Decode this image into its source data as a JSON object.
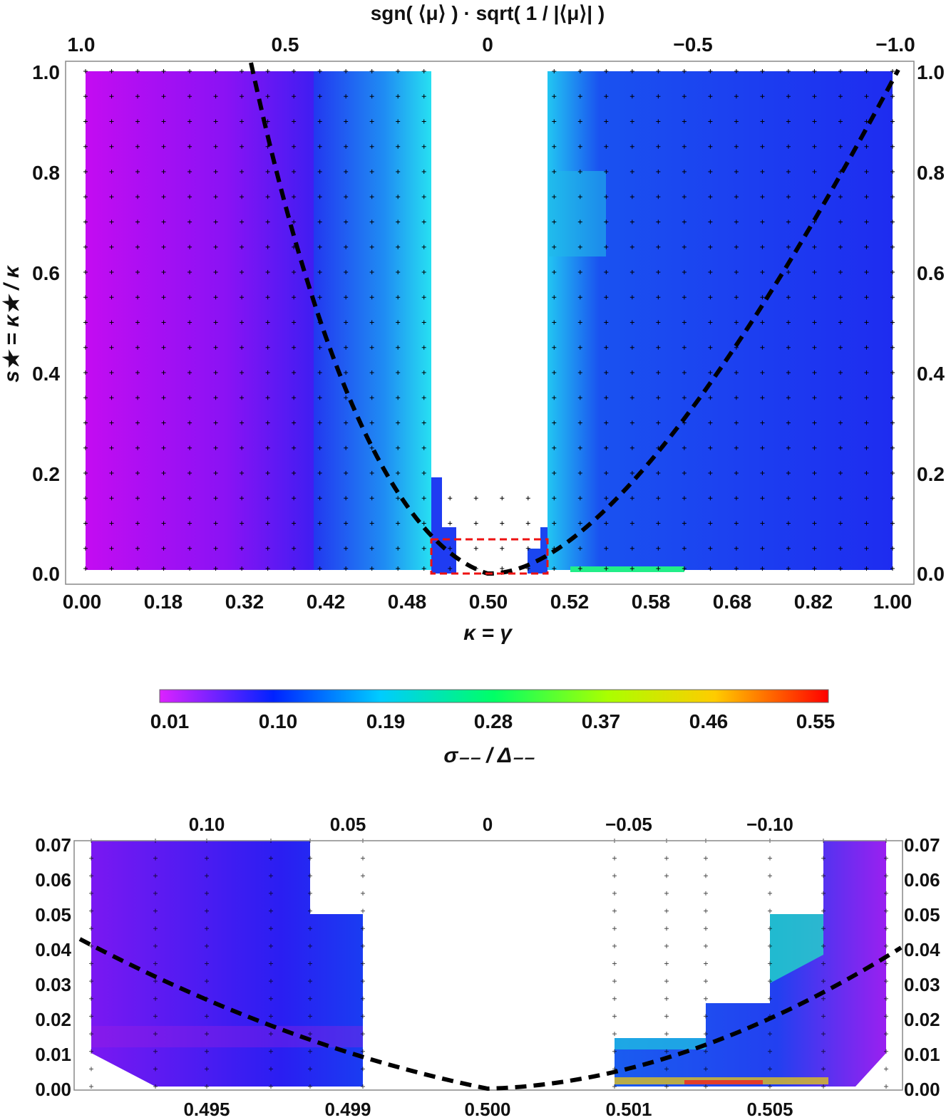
{
  "chart_data": [
    {
      "type": "heatmap",
      "panel": "main",
      "title": "",
      "top_axis_label": "sgn( ⟨μ⟩ ) · sqrt( 1 / |⟨μ⟩| )",
      "xlabel": "κ = γ",
      "ylabel": "s★ = κ★ / κ",
      "x_tick_labels": [
        "0.00",
        "0.18",
        "0.32",
        "0.42",
        "0.48",
        "0.50",
        "0.52",
        "0.58",
        "0.68",
        "0.82",
        "1.00"
      ],
      "top_tick_labels": [
        "1.0",
        "0.5",
        "0",
        "−0.5",
        "−1.0"
      ],
      "y_tick_labels": [
        "0.0",
        "0.2",
        "0.4",
        "0.6",
        "0.8",
        "1.0"
      ],
      "ylim": [
        0,
        1
      ],
      "x_columns": 32,
      "y_values": [
        0.01,
        0.05,
        0.1,
        0.15,
        0.2,
        0.25,
        0.3,
        0.35,
        0.4,
        0.45,
        0.5,
        0.55,
        0.6,
        0.65,
        0.7,
        0.75,
        0.8,
        0.85,
        0.9,
        0.95,
        1.0
      ],
      "empty_region": {
        "x_range": [
          0.48,
          0.52
        ],
        "y_range": [
          0.2,
          1.0
        ]
      },
      "values_sample": {
        "left_region": 0.02,
        "mid_left": 0.1,
        "near_gap_left": 0.19,
        "near_gap_right": 0.22,
        "right_region": 0.11,
        "bottom_right_edge": 0.28
      },
      "overlay_curve": {
        "style": "black dashed",
        "shape": "parabola",
        "vertex": [
          0.5,
          0.0
        ],
        "endpoints": [
          [
            0.34,
            1.0
          ],
          [
            1.0,
            1.0
          ]
        ]
      },
      "zoom_box": {
        "style": "red dashed",
        "y_range": [
          0.0,
          0.07
        ]
      },
      "grid_markers": "plus"
    },
    {
      "type": "colorbar",
      "label": "σ₋₋ / Δ₋₋",
      "tick_labels": [
        "0.01",
        "0.10",
        "0.19",
        "0.28",
        "0.37",
        "0.46",
        "0.55"
      ],
      "range": [
        0.01,
        0.55
      ],
      "colors": [
        "#dd22ff",
        "#0022ff",
        "#00ffff",
        "#00ff00",
        "#ffff00",
        "#ff0000"
      ]
    },
    {
      "type": "heatmap",
      "panel": "zoom",
      "x_tick_labels": [
        "0.495",
        "0.499",
        "0.500",
        "0.501",
        "0.505"
      ],
      "top_tick_labels": [
        "0.10",
        "0.05",
        "0",
        "−0.05",
        "−0.10"
      ],
      "y_tick_labels": [
        "0.00",
        "0.01",
        "0.02",
        "0.03",
        "0.04",
        "0.05",
        "0.06",
        "0.07"
      ],
      "ylim": [
        0,
        0.07
      ],
      "left_region_value": 0.08,
      "right_region_value": 0.14,
      "overlay_curve": {
        "style": "black dashed",
        "shape": "parabola",
        "vertex": [
          0.5,
          0.0
        ]
      }
    }
  ]
}
